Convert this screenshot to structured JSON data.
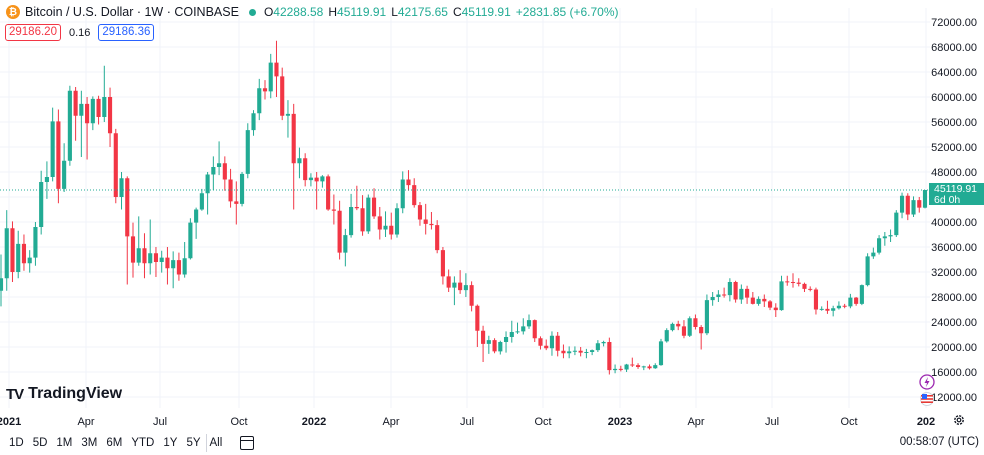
{
  "header": {
    "symbol": "Bitcoin / U.S. Dollar · 1W · COINBASE",
    "logo_glyph": "₿",
    "ohlc": {
      "o_label": "O",
      "o": "42288.58",
      "h_label": "H",
      "h": "45119.91",
      "l_label": "L",
      "l": "42175.65",
      "c_label": "C",
      "c": "45119.91",
      "change": "+2831.85 (+6.70%)"
    },
    "bid": "29186.20",
    "spread": "0.16",
    "ask": "29186.36"
  },
  "price_label": {
    "value": "45119.91",
    "countdown": "6d 0h"
  },
  "brand": "TradingView",
  "timeframes": [
    "1D",
    "5D",
    "1M",
    "3M",
    "6M",
    "YTD",
    "1Y",
    "5Y",
    "All"
  ],
  "clock": "00:58:07 (UTC)",
  "colors": {
    "up": "#22ab94",
    "down": "#f23645",
    "accent": "#2962ff"
  },
  "icons": {
    "calendar": "calendar-icon",
    "settings": "gear-icon",
    "flash": "flash-icon",
    "flag": "us-flag-icon",
    "logo": "bitcoin-logo-icon"
  },
  "chart_data": {
    "type": "candlestick",
    "interval": "1W",
    "y_ticks": [
      "72000.00",
      "68000.00",
      "64000.00",
      "60000.00",
      "56000.00",
      "52000.00",
      "48000.00",
      "44000.00",
      "40000.00",
      "36000.00",
      "32000.00",
      "28000.00",
      "24000.00",
      "20000.00",
      "16000.00",
      "12000.00"
    ],
    "ylim": [
      10000,
      74000
    ],
    "x_tick_labels": [
      "2021",
      "Apr",
      "Jul",
      "Oct",
      "2022",
      "Apr",
      "Jul",
      "Oct",
      "2023",
      "Apr",
      "Jul",
      "Oct",
      "202"
    ],
    "x_tick_bold": [
      true,
      false,
      false,
      false,
      true,
      false,
      false,
      false,
      true,
      false,
      false,
      false,
      true
    ],
    "last_price": 45119.91,
    "candles": [
      {
        "o": 29000,
        "h": 34800,
        "l": 26500,
        "c": 31000
      },
      {
        "o": 31000,
        "h": 41900,
        "l": 29000,
        "c": 39000
      },
      {
        "o": 39000,
        "h": 40100,
        "l": 30400,
        "c": 32000
      },
      {
        "o": 32000,
        "h": 38600,
        "l": 31000,
        "c": 36500
      },
      {
        "o": 36500,
        "h": 38000,
        "l": 32200,
        "c": 33400
      },
      {
        "o": 33400,
        "h": 35500,
        "l": 31900,
        "c": 34300
      },
      {
        "o": 34300,
        "h": 40000,
        "l": 33000,
        "c": 39200
      },
      {
        "o": 39200,
        "h": 48200,
        "l": 38000,
        "c": 46400
      },
      {
        "o": 46400,
        "h": 49700,
        "l": 43700,
        "c": 47200
      },
      {
        "o": 47200,
        "h": 58300,
        "l": 46500,
        "c": 56100
      },
      {
        "o": 56100,
        "h": 58000,
        "l": 43000,
        "c": 45300
      },
      {
        "o": 45300,
        "h": 52600,
        "l": 44800,
        "c": 49800
      },
      {
        "o": 49800,
        "h": 61800,
        "l": 49000,
        "c": 61000
      },
      {
        "o": 61000,
        "h": 61600,
        "l": 53000,
        "c": 57000
      },
      {
        "o": 57000,
        "h": 61000,
        "l": 50400,
        "c": 58900
      },
      {
        "o": 58900,
        "h": 60000,
        "l": 50000,
        "c": 55800
      },
      {
        "o": 55800,
        "h": 60100,
        "l": 54700,
        "c": 59700
      },
      {
        "o": 59700,
        "h": 60200,
        "l": 55600,
        "c": 56800
      },
      {
        "o": 56800,
        "h": 65000,
        "l": 56000,
        "c": 60000
      },
      {
        "o": 60000,
        "h": 61500,
        "l": 52000,
        "c": 54200
      },
      {
        "o": 54200,
        "h": 54900,
        "l": 43000,
        "c": 44000
      },
      {
        "o": 44000,
        "h": 48000,
        "l": 42000,
        "c": 47000
      },
      {
        "o": 47000,
        "h": 47300,
        "l": 30000,
        "c": 37700
      },
      {
        "o": 37700,
        "h": 39900,
        "l": 31100,
        "c": 33500
      },
      {
        "o": 33500,
        "h": 40900,
        "l": 33000,
        "c": 35800
      },
      {
        "o": 35800,
        "h": 38200,
        "l": 31000,
        "c": 33400
      },
      {
        "o": 33400,
        "h": 40400,
        "l": 31600,
        "c": 35000
      },
      {
        "o": 35000,
        "h": 36000,
        "l": 31200,
        "c": 33600
      },
      {
        "o": 33600,
        "h": 35400,
        "l": 31900,
        "c": 34300
      },
      {
        "o": 34300,
        "h": 36000,
        "l": 30000,
        "c": 32600
      },
      {
        "o": 32600,
        "h": 35300,
        "l": 29400,
        "c": 33900
      },
      {
        "o": 33900,
        "h": 35100,
        "l": 30600,
        "c": 31600
      },
      {
        "o": 31600,
        "h": 36800,
        "l": 31100,
        "c": 34200
      },
      {
        "o": 34200,
        "h": 40600,
        "l": 34000,
        "c": 39900
      },
      {
        "o": 39900,
        "h": 42300,
        "l": 37300,
        "c": 42000
      },
      {
        "o": 42000,
        "h": 45300,
        "l": 41800,
        "c": 44600
      },
      {
        "o": 44600,
        "h": 48000,
        "l": 41200,
        "c": 47600
      },
      {
        "o": 47600,
        "h": 50500,
        "l": 45100,
        "c": 48800
      },
      {
        "o": 48800,
        "h": 52900,
        "l": 47500,
        "c": 49400
      },
      {
        "o": 49400,
        "h": 50500,
        "l": 45000,
        "c": 46800
      },
      {
        "o": 46800,
        "h": 48500,
        "l": 42300,
        "c": 43300
      },
      {
        "o": 43300,
        "h": 46500,
        "l": 39600,
        "c": 42900
      },
      {
        "o": 42900,
        "h": 48000,
        "l": 42500,
        "c": 47700
      },
      {
        "o": 47700,
        "h": 55800,
        "l": 47000,
        "c": 54700
      },
      {
        "o": 54700,
        "h": 57900,
        "l": 53800,
        "c": 57400
      },
      {
        "o": 57400,
        "h": 62900,
        "l": 56300,
        "c": 61400
      },
      {
        "o": 61400,
        "h": 62700,
        "l": 59600,
        "c": 60900
      },
      {
        "o": 60900,
        "h": 66900,
        "l": 59800,
        "c": 65500
      },
      {
        "o": 65500,
        "h": 69000,
        "l": 60000,
        "c": 63300
      },
      {
        "o": 63300,
        "h": 64700,
        "l": 56300,
        "c": 57000
      },
      {
        "o": 57000,
        "h": 59500,
        "l": 53500,
        "c": 57300
      },
      {
        "o": 57300,
        "h": 58900,
        "l": 42000,
        "c": 49400
      },
      {
        "o": 49400,
        "h": 51900,
        "l": 47000,
        "c": 50200
      },
      {
        "o": 50200,
        "h": 51000,
        "l": 45700,
        "c": 46700
      },
      {
        "o": 46700,
        "h": 47800,
        "l": 45700,
        "c": 47100
      },
      {
        "o": 47100,
        "h": 48000,
        "l": 42000,
        "c": 46500
      },
      {
        "o": 46500,
        "h": 47500,
        "l": 45500,
        "c": 47300
      },
      {
        "o": 47300,
        "h": 47600,
        "l": 41800,
        "c": 42000
      },
      {
        "o": 42000,
        "h": 44400,
        "l": 39600,
        "c": 41800
      },
      {
        "o": 41800,
        "h": 43400,
        "l": 34000,
        "c": 35100
      },
      {
        "o": 35100,
        "h": 38900,
        "l": 32900,
        "c": 37900
      },
      {
        "o": 37900,
        "h": 44500,
        "l": 37500,
        "c": 42400
      },
      {
        "o": 42400,
        "h": 45800,
        "l": 41900,
        "c": 42200
      },
      {
        "o": 42200,
        "h": 44300,
        "l": 37800,
        "c": 38500
      },
      {
        "o": 38500,
        "h": 44400,
        "l": 38100,
        "c": 43900
      },
      {
        "o": 43900,
        "h": 45400,
        "l": 40500,
        "c": 40900
      },
      {
        "o": 40900,
        "h": 42400,
        "l": 37200,
        "c": 38800
      },
      {
        "o": 38800,
        "h": 41700,
        "l": 37600,
        "c": 39400
      },
      {
        "o": 39400,
        "h": 41500,
        "l": 37200,
        "c": 38000
      },
      {
        "o": 38000,
        "h": 43000,
        "l": 37500,
        "c": 42200
      },
      {
        "o": 42200,
        "h": 48100,
        "l": 41400,
        "c": 46800
      },
      {
        "o": 46800,
        "h": 48300,
        "l": 45000,
        "c": 45900
      },
      {
        "o": 45900,
        "h": 47000,
        "l": 42300,
        "c": 42700
      },
      {
        "o": 42700,
        "h": 43200,
        "l": 39400,
        "c": 40400
      },
      {
        "o": 40400,
        "h": 42900,
        "l": 38000,
        "c": 39700
      },
      {
        "o": 39700,
        "h": 41600,
        "l": 38800,
        "c": 39500
      },
      {
        "o": 39500,
        "h": 40300,
        "l": 35000,
        "c": 35500
      },
      {
        "o": 35500,
        "h": 36000,
        "l": 30000,
        "c": 31300
      },
      {
        "o": 31300,
        "h": 32400,
        "l": 28800,
        "c": 29500
      },
      {
        "o": 29500,
        "h": 31300,
        "l": 26700,
        "c": 30300
      },
      {
        "o": 30300,
        "h": 32300,
        "l": 28500,
        "c": 29100
      },
      {
        "o": 29100,
        "h": 31800,
        "l": 28000,
        "c": 29900
      },
      {
        "o": 29900,
        "h": 30500,
        "l": 25700,
        "c": 26600
      },
      {
        "o": 26600,
        "h": 26800,
        "l": 20000,
        "c": 22600
      },
      {
        "o": 22600,
        "h": 23400,
        "l": 17600,
        "c": 20500
      },
      {
        "o": 20500,
        "h": 21800,
        "l": 18900,
        "c": 21100
      },
      {
        "o": 21100,
        "h": 21400,
        "l": 19000,
        "c": 19300
      },
      {
        "o": 19300,
        "h": 21000,
        "l": 18800,
        "c": 20800
      },
      {
        "o": 20800,
        "h": 22500,
        "l": 19100,
        "c": 21600
      },
      {
        "o": 21600,
        "h": 24200,
        "l": 20700,
        "c": 22400
      },
      {
        "o": 22400,
        "h": 23900,
        "l": 22100,
        "c": 22500
      },
      {
        "o": 22500,
        "h": 24600,
        "l": 22000,
        "c": 23300
      },
      {
        "o": 23300,
        "h": 25200,
        "l": 22900,
        "c": 24300
      },
      {
        "o": 24300,
        "h": 24400,
        "l": 20800,
        "c": 21400
      },
      {
        "o": 21400,
        "h": 21700,
        "l": 19600,
        "c": 20200
      },
      {
        "o": 20200,
        "h": 21200,
        "l": 19500,
        "c": 19800
      },
      {
        "o": 19800,
        "h": 22500,
        "l": 18600,
        "c": 21800
      },
      {
        "o": 21800,
        "h": 22400,
        "l": 18500,
        "c": 19400
      },
      {
        "o": 19400,
        "h": 20400,
        "l": 18200,
        "c": 19000
      },
      {
        "o": 19000,
        "h": 20100,
        "l": 18200,
        "c": 19300
      },
      {
        "o": 19300,
        "h": 20100,
        "l": 18700,
        "c": 19400
      },
      {
        "o": 19400,
        "h": 20000,
        "l": 18500,
        "c": 19100
      },
      {
        "o": 19100,
        "h": 19700,
        "l": 18200,
        "c": 19200
      },
      {
        "o": 19200,
        "h": 19600,
        "l": 18700,
        "c": 19500
      },
      {
        "o": 19500,
        "h": 21100,
        "l": 19200,
        "c": 20600
      },
      {
        "o": 20600,
        "h": 21000,
        "l": 20100,
        "c": 20800
      },
      {
        "o": 20800,
        "h": 21500,
        "l": 15600,
        "c": 16300
      },
      {
        "o": 16300,
        "h": 17200,
        "l": 15800,
        "c": 16500
      },
      {
        "o": 16500,
        "h": 17000,
        "l": 16100,
        "c": 16400
      },
      {
        "o": 16400,
        "h": 17300,
        "l": 16000,
        "c": 17200
      },
      {
        "o": 17200,
        "h": 18300,
        "l": 16800,
        "c": 17100
      },
      {
        "o": 17100,
        "h": 17400,
        "l": 16500,
        "c": 16800
      },
      {
        "o": 16800,
        "h": 17000,
        "l": 16300,
        "c": 16900
      },
      {
        "o": 16900,
        "h": 17200,
        "l": 16400,
        "c": 16600
      },
      {
        "o": 16600,
        "h": 17400,
        "l": 16500,
        "c": 17100
      },
      {
        "o": 17100,
        "h": 21300,
        "l": 17000,
        "c": 20900
      },
      {
        "o": 20900,
        "h": 23000,
        "l": 20700,
        "c": 22700
      },
      {
        "o": 22700,
        "h": 23900,
        "l": 22500,
        "c": 23700
      },
      {
        "o": 23700,
        "h": 24200,
        "l": 22700,
        "c": 23300
      },
      {
        "o": 23300,
        "h": 24300,
        "l": 21400,
        "c": 21800
      },
      {
        "o": 21800,
        "h": 24900,
        "l": 21600,
        "c": 24600
      },
      {
        "o": 24600,
        "h": 25200,
        "l": 22800,
        "c": 23200
      },
      {
        "o": 23200,
        "h": 23500,
        "l": 19600,
        "c": 22200
      },
      {
        "o": 22200,
        "h": 28400,
        "l": 21900,
        "c": 27500
      },
      {
        "o": 27500,
        "h": 28800,
        "l": 26600,
        "c": 28000
      },
      {
        "o": 28000,
        "h": 29100,
        "l": 27200,
        "c": 28400
      },
      {
        "o": 28400,
        "h": 29500,
        "l": 27900,
        "c": 28300
      },
      {
        "o": 28300,
        "h": 31000,
        "l": 27300,
        "c": 30400
      },
      {
        "o": 30400,
        "h": 30600,
        "l": 27100,
        "c": 27600
      },
      {
        "o": 27600,
        "h": 30000,
        "l": 26900,
        "c": 29300
      },
      {
        "o": 29300,
        "h": 29800,
        "l": 26900,
        "c": 27900
      },
      {
        "o": 27900,
        "h": 28800,
        "l": 26800,
        "c": 26900
      },
      {
        "o": 26900,
        "h": 28100,
        "l": 26600,
        "c": 27700
      },
      {
        "o": 27700,
        "h": 28400,
        "l": 26400,
        "c": 27300
      },
      {
        "o": 27300,
        "h": 27500,
        "l": 25900,
        "c": 26300
      },
      {
        "o": 26300,
        "h": 27000,
        "l": 24800,
        "c": 25900
      },
      {
        "o": 25900,
        "h": 31400,
        "l": 25800,
        "c": 30500
      },
      {
        "o": 30500,
        "h": 31400,
        "l": 29800,
        "c": 30400
      },
      {
        "o": 30400,
        "h": 31800,
        "l": 29500,
        "c": 30300
      },
      {
        "o": 30300,
        "h": 31000,
        "l": 29700,
        "c": 30100
      },
      {
        "o": 30100,
        "h": 30300,
        "l": 28800,
        "c": 29300
      },
      {
        "o": 29300,
        "h": 29700,
        "l": 28900,
        "c": 29200
      },
      {
        "o": 29200,
        "h": 29500,
        "l": 25200,
        "c": 26000
      },
      {
        "o": 26000,
        "h": 26500,
        "l": 25800,
        "c": 26100
      },
      {
        "o": 26100,
        "h": 27400,
        "l": 25300,
        "c": 25800
      },
      {
        "o": 25800,
        "h": 26600,
        "l": 24900,
        "c": 26200
      },
      {
        "o": 26200,
        "h": 27300,
        "l": 26000,
        "c": 26600
      },
      {
        "o": 26600,
        "h": 26900,
        "l": 26200,
        "c": 26500
      },
      {
        "o": 26500,
        "h": 28500,
        "l": 26200,
        "c": 27900
      },
      {
        "o": 27900,
        "h": 28000,
        "l": 26600,
        "c": 26900
      },
      {
        "o": 26900,
        "h": 30000,
        "l": 26700,
        "c": 29900
      },
      {
        "o": 29900,
        "h": 35000,
        "l": 29700,
        "c": 34500
      },
      {
        "o": 34500,
        "h": 35900,
        "l": 34100,
        "c": 35100
      },
      {
        "o": 35100,
        "h": 37900,
        "l": 34800,
        "c": 37400
      },
      {
        "o": 37400,
        "h": 38400,
        "l": 36200,
        "c": 37700
      },
      {
        "o": 37700,
        "h": 38800,
        "l": 36800,
        "c": 37900
      },
      {
        "o": 37900,
        "h": 41900,
        "l": 37600,
        "c": 41500
      },
      {
        "o": 41500,
        "h": 44700,
        "l": 40600,
        "c": 44200
      },
      {
        "o": 44200,
        "h": 44600,
        "l": 40300,
        "c": 41200
      },
      {
        "o": 41200,
        "h": 44100,
        "l": 40800,
        "c": 43500
      },
      {
        "o": 43500,
        "h": 44000,
        "l": 41500,
        "c": 42300
      },
      {
        "o": 42288.58,
        "h": 45119.91,
        "l": 42175.65,
        "c": 45119.91
      }
    ]
  }
}
